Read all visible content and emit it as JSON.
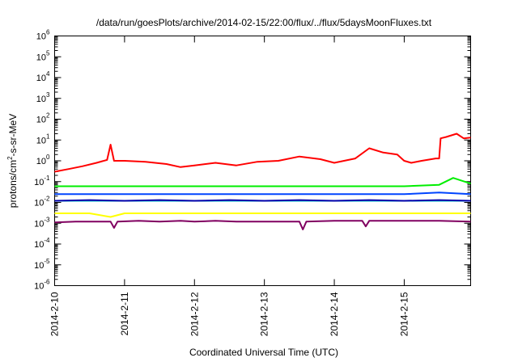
{
  "chart_data": {
    "type": "line",
    "title": "/data/run/goesPlots/archive/2014-02-15/22:00/flux/../flux/5daysMoonFluxes.txt",
    "xlabel": "Coordinated Universal Time (UTC)",
    "ylabel": "protons/cm2-s-sr-MeV",
    "yscale": "log",
    "ylim": [
      1e-06,
      1000000.0
    ],
    "xlim": [
      0,
      5.95
    ],
    "x_unit": "days since 2014-2-10 00:00 UTC",
    "x_ticks": [
      {
        "x": 0,
        "label": "2014-2-10"
      },
      {
        "x": 1,
        "label": "2014-2-11"
      },
      {
        "x": 2,
        "label": "2014-2-12"
      },
      {
        "x": 3,
        "label": "2014-2-13"
      },
      {
        "x": 4,
        "label": "2014-2-14"
      },
      {
        "x": 5,
        "label": "2014-2-15"
      }
    ],
    "y_ticks": [
      {
        "exp": -6,
        "base": "10",
        "sup": "-6"
      },
      {
        "exp": -5,
        "base": "10",
        "sup": "-5"
      },
      {
        "exp": -4,
        "base": "10",
        "sup": "-4"
      },
      {
        "exp": -3,
        "base": "10",
        "sup": "-3"
      },
      {
        "exp": -2,
        "base": "10",
        "sup": "-2"
      },
      {
        "exp": -1,
        "base": "10",
        "sup": "-1"
      },
      {
        "exp": 0,
        "base": "10",
        "sup": "0"
      },
      {
        "exp": 1,
        "base": "10",
        "sup": "1"
      },
      {
        "exp": 2,
        "base": "10",
        "sup": "2"
      },
      {
        "exp": 3,
        "base": "10",
        "sup": "3"
      },
      {
        "exp": 4,
        "base": "10",
        "sup": "4"
      },
      {
        "exp": 5,
        "base": "10",
        "sup": "5"
      },
      {
        "exp": 6,
        "base": "10",
        "sup": "6"
      }
    ],
    "grid": false,
    "legend": "none",
    "series": [
      {
        "color": "#ff0000",
        "x": [
          0,
          0.2,
          0.4,
          0.6,
          0.75,
          0.8,
          0.85,
          1.0,
          1.3,
          1.6,
          1.8,
          2.0,
          2.3,
          2.6,
          2.9,
          3.2,
          3.5,
          3.8,
          4.0,
          4.3,
          4.5,
          4.7,
          4.9,
          5.0,
          5.1,
          5.25,
          5.45,
          5.5,
          5.52,
          5.6,
          5.75,
          5.85,
          5.95
        ],
        "values": [
          0.3,
          0.4,
          0.55,
          0.8,
          1.1,
          6.0,
          1.0,
          1.0,
          0.9,
          0.7,
          0.5,
          0.6,
          0.8,
          0.6,
          0.9,
          1.0,
          1.6,
          1.2,
          0.8,
          1.3,
          4.0,
          2.5,
          2.0,
          1.0,
          0.8,
          1.0,
          1.3,
          1.3,
          12.0,
          14.0,
          20.0,
          12.0,
          13.0
        ]
      },
      {
        "color": "#00ee00",
        "x": [
          0,
          0.5,
          1.0,
          1.5,
          2.0,
          2.5,
          3.0,
          3.5,
          4.0,
          4.5,
          5.0,
          5.5,
          5.7,
          5.95
        ],
        "values": [
          0.06,
          0.06,
          0.06,
          0.06,
          0.06,
          0.06,
          0.06,
          0.06,
          0.06,
          0.06,
          0.06,
          0.07,
          0.15,
          0.08
        ]
      },
      {
        "color": "#0044ff",
        "x": [
          0,
          0.5,
          1.0,
          1.5,
          2.0,
          2.5,
          3.0,
          3.5,
          4.0,
          4.5,
          5.0,
          5.5,
          5.95
        ],
        "values": [
          0.025,
          0.025,
          0.025,
          0.025,
          0.025,
          0.025,
          0.025,
          0.025,
          0.025,
          0.025,
          0.025,
          0.03,
          0.025
        ]
      },
      {
        "color": "#00cccc",
        "x": [
          0,
          0.5,
          1.0,
          1.5,
          2.0,
          2.5,
          3.0,
          3.5,
          4.0,
          4.5,
          5.0,
          5.5,
          5.95
        ],
        "values": [
          0.012,
          0.012,
          0.012,
          0.012,
          0.012,
          0.012,
          0.012,
          0.012,
          0.012,
          0.012,
          0.012,
          0.012,
          0.012
        ]
      },
      {
        "color": "#0000aa",
        "x": [
          0,
          0.5,
          1.0,
          1.5,
          2.0,
          2.5,
          3.0,
          3.5,
          4.0,
          4.5,
          5.0,
          5.5,
          5.95
        ],
        "values": [
          0.012,
          0.013,
          0.012,
          0.013,
          0.012,
          0.013,
          0.012,
          0.013,
          0.012,
          0.013,
          0.012,
          0.013,
          0.012
        ]
      },
      {
        "color": "#ffff00",
        "x": [
          0,
          0.5,
          0.8,
          1.0,
          1.5,
          2.0,
          2.5,
          3.0,
          3.5,
          4.0,
          4.5,
          5.0,
          5.5,
          5.95
        ],
        "values": [
          0.003,
          0.003,
          0.002,
          0.003,
          0.003,
          0.003,
          0.003,
          0.003,
          0.003,
          0.003,
          0.003,
          0.003,
          0.003,
          0.003
        ]
      },
      {
        "color": "#800060",
        "x": [
          0,
          0.3,
          0.6,
          0.8,
          0.85,
          0.9,
          1.2,
          1.5,
          1.8,
          2.0,
          2.3,
          2.6,
          3.0,
          3.5,
          3.55,
          3.6,
          4.0,
          4.4,
          4.45,
          4.5,
          5.0,
          5.5,
          5.95
        ],
        "values": [
          0.0011,
          0.0012,
          0.0012,
          0.0012,
          0.0006,
          0.0012,
          0.0013,
          0.0012,
          0.0013,
          0.0012,
          0.0013,
          0.0012,
          0.0012,
          0.0012,
          0.0005,
          0.0012,
          0.0013,
          0.0013,
          0.0007,
          0.0013,
          0.0013,
          0.0013,
          0.0012
        ]
      }
    ]
  }
}
